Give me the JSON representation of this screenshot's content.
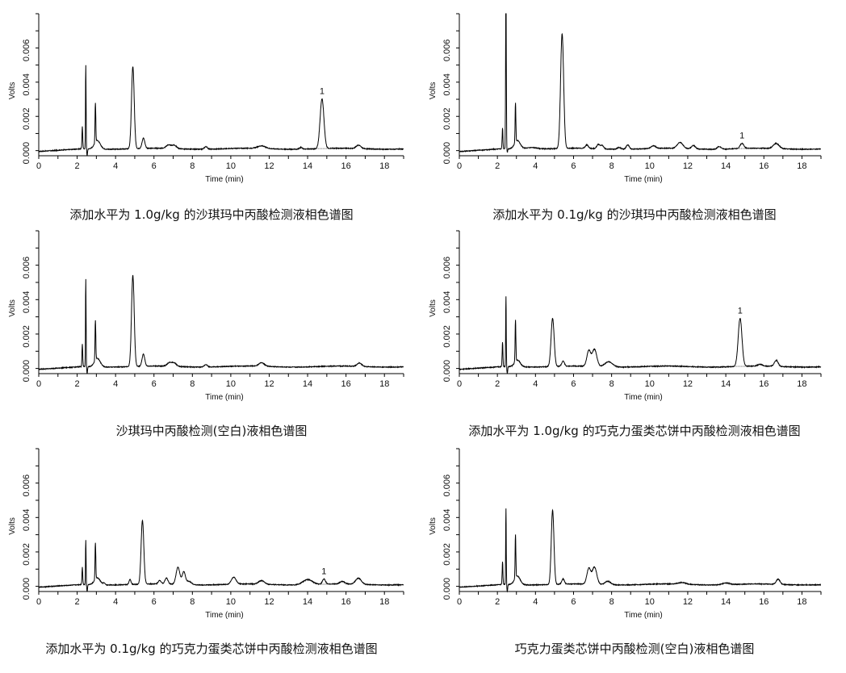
{
  "chart_data": [
    {
      "type": "line",
      "title": "添加水平为 1.0g/kg 的沙琪玛中丙酸检测液相色谱图",
      "xlabel": "Time (min)",
      "ylabel": "Volts",
      "xlim": [
        0,
        19
      ],
      "ylim": [
        -0.0003,
        0.008
      ],
      "xticks": [
        0,
        2,
        4,
        6,
        8,
        10,
        12,
        14,
        16,
        18
      ],
      "yticks": [
        "0.000",
        "0.002",
        "0.004",
        "0.006"
      ],
      "peak_label": {
        "text": "1",
        "time": 14.75
      },
      "peaks": [
        [
          2.27,
          0.0013,
          0.02
        ],
        [
          2.45,
          0.0049,
          0.015
        ],
        [
          2.52,
          -0.0004,
          0.02
        ],
        [
          2.95,
          0.0023,
          0.02
        ],
        [
          3.05,
          0.0005,
          0.15
        ],
        [
          4.9,
          0.0048,
          0.07
        ],
        [
          5.45,
          0.0006,
          0.07
        ],
        [
          6.75,
          0.0002,
          0.12
        ],
        [
          7.05,
          0.0002,
          0.12
        ],
        [
          8.7,
          0.00015,
          0.08
        ],
        [
          11.6,
          0.00015,
          0.2
        ],
        [
          13.65,
          0.0001,
          0.08
        ],
        [
          14.75,
          0.0029,
          0.1
        ],
        [
          16.65,
          0.0002,
          0.12
        ]
      ]
    },
    {
      "type": "line",
      "title": "添加水平为 0.1g/kg 的沙琪玛中丙酸检测液相色谱图",
      "xlabel": "Time (min)",
      "ylabel": "Volts",
      "xlim": [
        0,
        19
      ],
      "ylim": [
        -0.0003,
        0.008
      ],
      "xticks": [
        0,
        2,
        4,
        6,
        8,
        10,
        12,
        14,
        16,
        18
      ],
      "yticks": [
        "0.000",
        "0.002",
        "0.004",
        "0.006"
      ],
      "peak_label": {
        "text": "1",
        "time": 14.85
      },
      "peaks": [
        [
          2.27,
          0.0012,
          0.02
        ],
        [
          2.45,
          0.0095,
          0.018
        ],
        [
          2.52,
          -0.0002,
          0.02
        ],
        [
          2.95,
          0.0023,
          0.02
        ],
        [
          3.05,
          0.0005,
          0.15
        ],
        [
          3.8,
          0.0001,
          0.3
        ],
        [
          5.4,
          0.0067,
          0.08
        ],
        [
          6.7,
          0.0002,
          0.08
        ],
        [
          7.3,
          0.00025,
          0.08
        ],
        [
          7.5,
          0.0002,
          0.08
        ],
        [
          8.4,
          0.0001,
          0.1
        ],
        [
          8.85,
          0.00025,
          0.08
        ],
        [
          10.2,
          0.00015,
          0.12
        ],
        [
          11.6,
          0.00035,
          0.15
        ],
        [
          12.3,
          0.0002,
          0.1
        ],
        [
          13.65,
          0.00015,
          0.1
        ],
        [
          14.85,
          0.0003,
          0.1
        ],
        [
          16.65,
          0.0003,
          0.15
        ]
      ]
    },
    {
      "type": "line",
      "title": "沙琪玛中丙酸检测(空白)液相色谱图",
      "xlabel": "Time (min)",
      "ylabel": "Volts",
      "xlim": [
        0,
        19
      ],
      "ylim": [
        -0.0003,
        0.008
      ],
      "xticks": [
        0,
        2,
        4,
        6,
        8,
        10,
        12,
        14,
        16,
        18
      ],
      "yticks": [
        "0.000",
        "0.002",
        "0.004",
        "0.006"
      ],
      "peak_label": null,
      "peaks": [
        [
          2.27,
          0.0013,
          0.02
        ],
        [
          2.45,
          0.0051,
          0.015
        ],
        [
          2.52,
          -0.0004,
          0.02
        ],
        [
          2.95,
          0.0023,
          0.02
        ],
        [
          3.05,
          0.0005,
          0.15
        ],
        [
          4.9,
          0.0053,
          0.07
        ],
        [
          5.45,
          0.0007,
          0.07
        ],
        [
          6.8,
          0.0002,
          0.12
        ],
        [
          7.05,
          0.0002,
          0.12
        ],
        [
          8.7,
          0.00015,
          0.08
        ],
        [
          11.6,
          0.0002,
          0.15
        ],
        [
          16.7,
          0.0002,
          0.12
        ]
      ]
    },
    {
      "type": "line",
      "title": "添加水平为 1.0g/kg 的巧克力蛋类芯饼中丙酸检测液相色谱图",
      "xlabel": "Time (min)",
      "ylabel": "Volts",
      "xlim": [
        0,
        19
      ],
      "ylim": [
        -0.0003,
        0.008
      ],
      "xticks": [
        0,
        2,
        4,
        6,
        8,
        10,
        12,
        14,
        16,
        18
      ],
      "yticks": [
        "0.000",
        "0.002",
        "0.004",
        "0.006"
      ],
      "peak_label": {
        "text": "1",
        "time": 14.75
      },
      "peaks": [
        [
          2.27,
          0.0014,
          0.02
        ],
        [
          2.45,
          0.0041,
          0.015
        ],
        [
          2.52,
          -0.0004,
          0.02
        ],
        [
          2.95,
          0.0024,
          0.02
        ],
        [
          3.05,
          0.0004,
          0.15
        ],
        [
          4.9,
          0.0028,
          0.08
        ],
        [
          5.45,
          0.0003,
          0.07
        ],
        [
          6.8,
          0.0009,
          0.1
        ],
        [
          7.1,
          0.001,
          0.12
        ],
        [
          7.85,
          0.0003,
          0.2
        ],
        [
          14.75,
          0.0028,
          0.1
        ],
        [
          15.8,
          0.0001,
          0.12
        ],
        [
          16.65,
          0.00035,
          0.1
        ]
      ]
    },
    {
      "type": "line",
      "title": "添加水平为 0.1g/kg 的巧克力蛋类芯饼中丙酸检测液相色谱图",
      "xlabel": "Time (min)",
      "ylabel": "Volts",
      "xlim": [
        0,
        19
      ],
      "ylim": [
        -0.0003,
        0.008
      ],
      "xticks": [
        0,
        2,
        4,
        6,
        8,
        10,
        12,
        14,
        16,
        18
      ],
      "yticks": [
        "0.000",
        "0.002",
        "0.004",
        "0.006"
      ],
      "peak_label": {
        "text": "1",
        "time": 14.85
      },
      "peaks": [
        [
          2.27,
          0.001,
          0.02
        ],
        [
          2.45,
          0.0026,
          0.015
        ],
        [
          2.52,
          -0.0004,
          0.02
        ],
        [
          2.95,
          0.0021,
          0.02
        ],
        [
          3.05,
          0.0004,
          0.15
        ],
        [
          3.4,
          0.0001,
          0.05
        ],
        [
          4.75,
          0.0003,
          0.05
        ],
        [
          5.4,
          0.0037,
          0.07
        ],
        [
          6.3,
          0.0002,
          0.08
        ],
        [
          6.65,
          0.00035,
          0.08
        ],
        [
          7.25,
          0.001,
          0.1
        ],
        [
          7.55,
          0.0007,
          0.08
        ],
        [
          7.8,
          0.0002,
          0.15
        ],
        [
          10.15,
          0.0004,
          0.12
        ],
        [
          11.6,
          0.0002,
          0.15
        ],
        [
          14.0,
          0.0003,
          0.25
        ],
        [
          14.85,
          0.0003,
          0.08
        ],
        [
          15.8,
          0.00015,
          0.12
        ],
        [
          16.65,
          0.00035,
          0.15
        ]
      ]
    },
    {
      "type": "line",
      "title": "巧克力蛋类芯饼中丙酸检测(空白)液相色谱图",
      "xlabel": "Time (min)",
      "ylabel": "Volts",
      "xlim": [
        0,
        19
      ],
      "ylim": [
        -0.0003,
        0.008
      ],
      "xticks": [
        0,
        2,
        4,
        6,
        8,
        10,
        12,
        14,
        16,
        18
      ],
      "yticks": [
        "0.000",
        "0.002",
        "0.004",
        "0.006"
      ],
      "peak_label": null,
      "peaks": [
        [
          2.27,
          0.0013,
          0.02
        ],
        [
          2.45,
          0.0044,
          0.015
        ],
        [
          2.52,
          -0.0004,
          0.02
        ],
        [
          2.95,
          0.0025,
          0.02
        ],
        [
          3.05,
          0.0005,
          0.15
        ],
        [
          4.9,
          0.0043,
          0.07
        ],
        [
          5.45,
          0.0003,
          0.07
        ],
        [
          6.8,
          0.0009,
          0.1
        ],
        [
          7.1,
          0.001,
          0.12
        ],
        [
          7.8,
          0.0002,
          0.15
        ],
        [
          11.7,
          0.0001,
          0.2
        ],
        [
          14.0,
          0.0001,
          0.2
        ],
        [
          16.75,
          0.0003,
          0.1
        ]
      ]
    }
  ]
}
